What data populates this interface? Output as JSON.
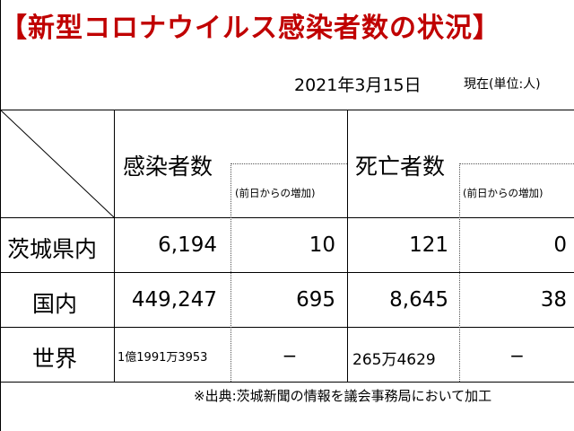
{
  "title": "【新型コロナウイルス感染者数の状況】",
  "date": "2021年3月15日",
  "unit": "現在(単位:人)",
  "headers": {
    "infected": "感染者数",
    "increase1": "(前日からの増加)",
    "deaths": "死亡者数",
    "increase2": "(前日からの増加)"
  },
  "rows": [
    {
      "label": "茨城県内",
      "infected": "6,194",
      "inf_inc": "10",
      "deaths": "121",
      "death_inc": "0"
    },
    {
      "label": "国内",
      "infected": "449,247",
      "inf_inc": "695",
      "deaths": "8,645",
      "death_inc": "38"
    },
    {
      "label": "世界",
      "infected": "1億1991万3953",
      "inf_inc": "−",
      "deaths": "265万4629",
      "death_inc": "−"
    }
  ],
  "note": "※出典:茨城新聞の情報を議会事務局において加工",
  "colors": {
    "title": "#c00000"
  }
}
